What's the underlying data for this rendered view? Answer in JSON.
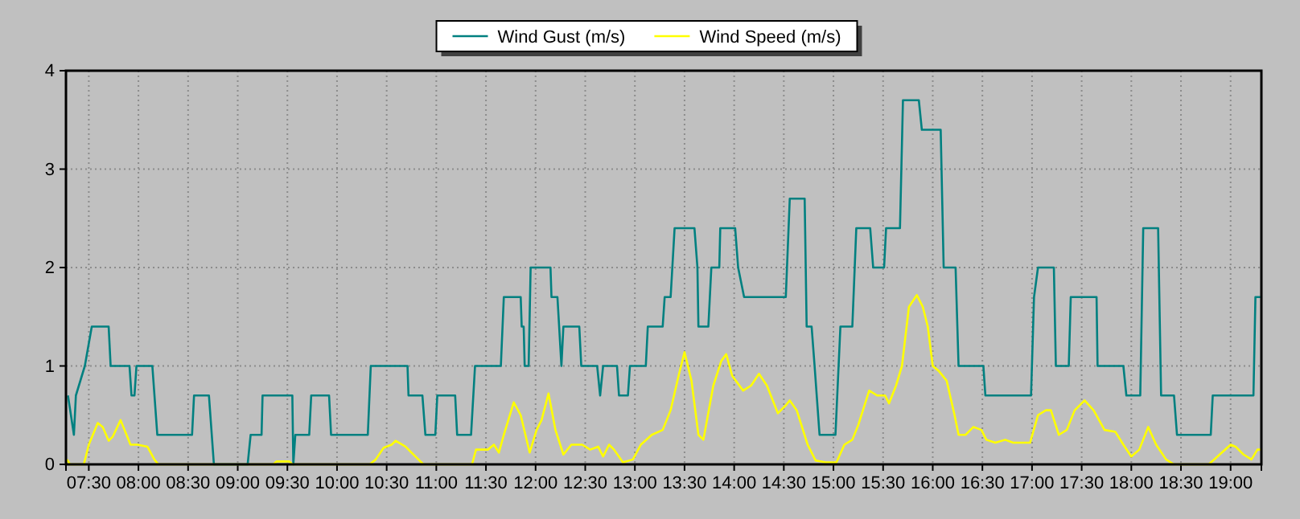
{
  "chart_data": {
    "type": "line",
    "xlim": [
      7.27,
      19.31
    ],
    "ylim": [
      0,
      4
    ],
    "yticks": [
      0,
      1,
      2,
      3,
      4
    ],
    "xticks": [
      {
        "value": 7.5,
        "label": "07:30"
      },
      {
        "value": 8,
        "label": "08:00"
      },
      {
        "value": 8.5,
        "label": "08:30"
      },
      {
        "value": 9,
        "label": "09:00"
      },
      {
        "value": 9.5,
        "label": "09:30"
      },
      {
        "value": 10,
        "label": "10:00"
      },
      {
        "value": 10.5,
        "label": "10:30"
      },
      {
        "value": 11,
        "label": "11:00"
      },
      {
        "value": 11.5,
        "label": "11:30"
      },
      {
        "value": 12,
        "label": "12:00"
      },
      {
        "value": 12.5,
        "label": "12:30"
      },
      {
        "value": 13,
        "label": "13:00"
      },
      {
        "value": 13.5,
        "label": "13:30"
      },
      {
        "value": 14,
        "label": "14:00"
      },
      {
        "value": 14.5,
        "label": "14:30"
      },
      {
        "value": 15,
        "label": "15:00"
      },
      {
        "value": 15.5,
        "label": "15:30"
      },
      {
        "value": 16,
        "label": "16:00"
      },
      {
        "value": 16.5,
        "label": "16:30"
      },
      {
        "value": 17,
        "label": "17:00"
      },
      {
        "value": 17.5,
        "label": "17:30"
      },
      {
        "value": 18,
        "label": "18:00"
      },
      {
        "value": 18.5,
        "label": "18:30"
      },
      {
        "value": 19,
        "label": "19:00"
      }
    ],
    "grid": true,
    "legend": "top",
    "marker": "none",
    "line_style": "solid",
    "series": [
      {
        "name": "Wind Gust (m/s)",
        "color": "#008080",
        "x": [
          7.29,
          7.35,
          7.37,
          7.46,
          7.53,
          7.7,
          7.72,
          7.91,
          7.93,
          7.96,
          7.98,
          8.14,
          8.19,
          8.54,
          8.56,
          8.71,
          8.76,
          9.1,
          9.13,
          9.24,
          9.25,
          9.55,
          9.56,
          9.58,
          9.72,
          9.74,
          9.92,
          9.94,
          10.31,
          10.34,
          10.71,
          10.72,
          10.86,
          10.89,
          10.99,
          11.01,
          11.19,
          11.21,
          11.35,
          11.39,
          11.65,
          11.68,
          11.85,
          11.86,
          11.88,
          11.89,
          11.93,
          11.95,
          12.15,
          12.16,
          12.22,
          12.26,
          12.28,
          12.44,
          12.46,
          12.62,
          12.65,
          12.68,
          12.82,
          12.84,
          12.93,
          12.95,
          13.11,
          13.13,
          13.28,
          13.3,
          13.36,
          13.4,
          13.6,
          13.63,
          13.64,
          13.74,
          13.77,
          13.85,
          13.86,
          14.01,
          14.04,
          14.1,
          14.52,
          14.56,
          14.71,
          14.73,
          14.78,
          14.81,
          14.86,
          15.02,
          15.07,
          15.19,
          15.23,
          15.37,
          15.4,
          15.51,
          15.53,
          15.67,
          15.7,
          15.86,
          15.89,
          16.08,
          16.11,
          16.23,
          16.26,
          16.51,
          16.53,
          16.99,
          17.02,
          17.06,
          17.22,
          17.24,
          17.37,
          17.39,
          17.65,
          17.66,
          17.92,
          17.95,
          18.09,
          18.12,
          18.27,
          18.3,
          18.43,
          18.46,
          18.8,
          18.82,
          19.23,
          19.25,
          19.3
        ],
        "values": [
          0.7,
          0.3,
          0.7,
          1.0,
          1.4,
          1.4,
          1.0,
          1.0,
          0.7,
          0.7,
          1.0,
          1.0,
          0.3,
          0.3,
          0.7,
          0.7,
          0,
          0,
          0.3,
          0.3,
          0.7,
          0.7,
          0,
          0.3,
          0.3,
          0.7,
          0.7,
          0.3,
          0.3,
          1.0,
          1.0,
          0.7,
          0.7,
          0.3,
          0.3,
          0.7,
          0.7,
          0.3,
          0.3,
          1.0,
          1.0,
          1.7,
          1.7,
          1.4,
          1.4,
          1.0,
          1.0,
          2.0,
          2.0,
          1.7,
          1.7,
          1.0,
          1.4,
          1.4,
          1.0,
          1.0,
          0.7,
          1.0,
          1.0,
          0.7,
          0.7,
          1.0,
          1.0,
          1.4,
          1.4,
          1.7,
          1.7,
          2.4,
          2.4,
          2.0,
          1.4,
          1.4,
          2.0,
          2.0,
          2.4,
          2.4,
          2.0,
          1.7,
          1.7,
          2.7,
          2.7,
          1.4,
          1.4,
          1.0,
          0.3,
          0.3,
          1.4,
          1.4,
          2.4,
          2.4,
          2.0,
          2.0,
          2.4,
          2.4,
          3.7,
          3.7,
          3.4,
          3.4,
          2.0,
          2.0,
          1.0,
          1.0,
          0.7,
          0.7,
          1.7,
          2.0,
          2.0,
          1.0,
          1.0,
          1.7,
          1.7,
          1.0,
          1.0,
          0.7,
          0.7,
          2.4,
          2.4,
          0.7,
          0.7,
          0.3,
          0.3,
          0.7,
          0.7,
          1.7,
          1.7
        ]
      },
      {
        "name": "Wind Speed (m/s)",
        "color": "#ffff00",
        "x": [
          7.28,
          7.31,
          7.45,
          7.5,
          7.59,
          7.64,
          7.7,
          7.74,
          7.82,
          7.88,
          7.92,
          7.99,
          8.09,
          8.16,
          8.2,
          9.36,
          9.39,
          9.52,
          9.55,
          10.33,
          10.39,
          10.47,
          10.55,
          10.59,
          10.69,
          10.82,
          10.87,
          11.36,
          11.4,
          11.52,
          11.58,
          11.63,
          11.68,
          11.78,
          11.85,
          11.94,
          12.01,
          12.06,
          12.13,
          12.2,
          12.28,
          12.36,
          12.47,
          12.55,
          12.63,
          12.68,
          12.74,
          12.79,
          12.88,
          12.98,
          13.06,
          13.17,
          13.28,
          13.36,
          13.44,
          13.5,
          13.57,
          13.64,
          13.69,
          13.79,
          13.87,
          13.92,
          13.98,
          14.09,
          14.17,
          14.25,
          14.33,
          14.44,
          14.52,
          14.56,
          14.63,
          14.74,
          14.82,
          14.92,
          15.03,
          15.11,
          15.19,
          15.25,
          15.36,
          15.44,
          15.52,
          15.56,
          15.63,
          15.69,
          15.76,
          15.84,
          15.9,
          15.95,
          16.0,
          16.06,
          16.14,
          16.22,
          16.26,
          16.33,
          16.41,
          16.49,
          16.54,
          16.63,
          16.73,
          16.81,
          16.98,
          17.06,
          17.14,
          17.19,
          17.27,
          17.35,
          17.43,
          17.53,
          17.62,
          17.73,
          17.84,
          17.92,
          18.0,
          18.08,
          18.17,
          18.25,
          18.35,
          18.43,
          18.78,
          18.89,
          19.0,
          19.05,
          19.13,
          19.21,
          19.27,
          19.3
        ],
        "values": [
          0.05,
          0,
          0,
          0.2,
          0.42,
          0.38,
          0.24,
          0.28,
          0.45,
          0.3,
          0.2,
          0.2,
          0.18,
          0.05,
          0,
          0,
          0.03,
          0.03,
          0,
          0,
          0.05,
          0.17,
          0.2,
          0.24,
          0.18,
          0.05,
          0,
          0,
          0.15,
          0.15,
          0.2,
          0.12,
          0.3,
          0.63,
          0.5,
          0.12,
          0.35,
          0.45,
          0.72,
          0.35,
          0.1,
          0.2,
          0.2,
          0.15,
          0.18,
          0.08,
          0.2,
          0.15,
          0.02,
          0.05,
          0.2,
          0.3,
          0.35,
          0.55,
          0.9,
          1.14,
          0.85,
          0.3,
          0.25,
          0.8,
          1.05,
          1.12,
          0.9,
          0.75,
          0.8,
          0.92,
          0.8,
          0.52,
          0.6,
          0.65,
          0.55,
          0.2,
          0.04,
          0.02,
          0.02,
          0.2,
          0.25,
          0.4,
          0.75,
          0.7,
          0.7,
          0.62,
          0.8,
          1.0,
          1.6,
          1.72,
          1.6,
          1.4,
          1.0,
          0.95,
          0.85,
          0.5,
          0.3,
          0.3,
          0.38,
          0.35,
          0.25,
          0.22,
          0.25,
          0.22,
          0.22,
          0.5,
          0.55,
          0.55,
          0.3,
          0.35,
          0.55,
          0.65,
          0.55,
          0.35,
          0.33,
          0.2,
          0.08,
          0.15,
          0.38,
          0.2,
          0.05,
          0,
          0,
          0.1,
          0.2,
          0.18,
          0.1,
          0.05,
          0.15,
          0.15
        ]
      }
    ]
  }
}
